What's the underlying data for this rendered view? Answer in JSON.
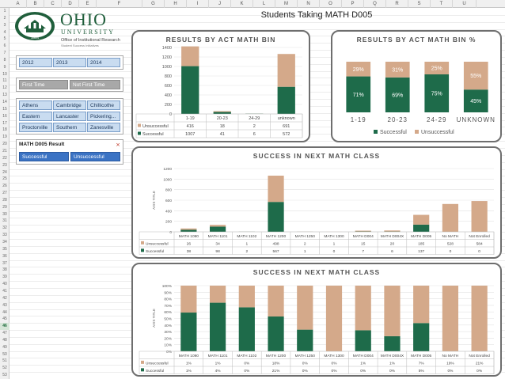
{
  "colors": {
    "successful": "#1e6b4a",
    "unsuccessful": "#d4a98a",
    "slicer_blue": "#c9dcf0",
    "slicer_active": "#3b73c4",
    "panel_border": "#6e6e6e"
  },
  "excel": {
    "columns": [
      "A",
      "B",
      "C",
      "D",
      "E",
      "F",
      "G",
      "H",
      "I",
      "J",
      "K",
      "L",
      "M",
      "N",
      "O",
      "P",
      "Q",
      "R",
      "S",
      "T",
      "U"
    ],
    "rows": [
      "1",
      "2",
      "3",
      "4",
      "5",
      "6",
      "7",
      "8",
      "9",
      "10",
      "11",
      "12",
      "13",
      "14",
      "15",
      "16",
      "17",
      "18",
      "19",
      "20",
      "21",
      "22",
      "23",
      "24",
      "25",
      "26",
      "27",
      "28",
      "29",
      "30",
      "31",
      "32",
      "33",
      "34",
      "35",
      "36",
      "37",
      "38",
      "39",
      "40",
      "41",
      "42",
      "43",
      "44",
      "45",
      "46",
      "47",
      "48",
      "49",
      "50",
      "51",
      "52",
      "53"
    ],
    "selected_row": "46"
  },
  "logo": {
    "name": "OHIO",
    "subname": "UNIVERSITY",
    "office": "Office of Institutional Research",
    "initiative": "Student Success Initiatives",
    "seal_year": "1804"
  },
  "page_title": "Students Taking MATH D005",
  "slicers": {
    "years": [
      "2012",
      "2013",
      "2014"
    ],
    "first_time": [
      "First Time",
      "Not First Time"
    ],
    "campuses": [
      "Athens",
      "Cambridge",
      "Chillicothe",
      "Eastern",
      "Lancaster",
      "Pickering...",
      "Proctorville",
      "Southern",
      "Zanesville"
    ],
    "result_title": "MATH D005 Result",
    "result_filter_icon": "filter-clear-icon",
    "results": [
      "Successful",
      "Unsuccessful"
    ]
  },
  "charts": {
    "act_bin": {
      "title": "RESULTS BY ACT MATH BIN",
      "chart_data": {
        "type": "bar",
        "stacked": true,
        "categories": [
          "1-19",
          "20-23",
          "24-29",
          "unknown"
        ],
        "series": [
          {
            "name": "Unsuccessful",
            "values": [
              416,
              18,
              2,
              691
            ]
          },
          {
            "name": "Successful",
            "values": [
              1007,
              41,
              6,
              572
            ]
          }
        ],
        "ylim": [
          0,
          1400
        ],
        "yticks": [
          0,
          200,
          400,
          600,
          800,
          1000,
          1200,
          1400
        ],
        "grid": true,
        "legend": "data-table"
      }
    },
    "act_bin_pct": {
      "title": "RESULTS BY ACT MATH BIN %",
      "chart_data": {
        "type": "bar",
        "stacked": true,
        "percent": true,
        "categories": [
          "1-19",
          "20-23",
          "24-29",
          "UNKNOWN"
        ],
        "series": [
          {
            "name": "Successful",
            "values": [
              71,
              69,
              75,
              45
            ],
            "labels": [
              "71%",
              "69%",
              "75%",
              "45%"
            ]
          },
          {
            "name": "Unsuccessful",
            "values": [
              29,
              31,
              25,
              55
            ],
            "labels": [
              "29%",
              "31%",
              "25%",
              "55%"
            ]
          }
        ],
        "ylim": [
          0,
          100
        ],
        "legend": "bottom"
      }
    },
    "next_math": {
      "title": "SUCCESS IN NEXT MATH CLASS",
      "chart_data": {
        "type": "bar",
        "stacked": true,
        "categories": [
          "MATH 1090",
          "MATH 1101",
          "MATH 1102",
          "MATH 1200",
          "MATH 1250",
          "MATH 1300",
          "MATH D004",
          "MATH D004X",
          "MATH D005",
          "No MATH",
          "Not Enrolled"
        ],
        "series": [
          {
            "name": "Unsuccessful",
            "values": [
              26,
              34,
              1,
              498,
              2,
              1,
              15,
              20,
              185,
              528,
              584
            ]
          },
          {
            "name": "Successful",
            "values": [
              38,
              98,
              2,
              567,
              1,
              0,
              7,
              6,
              137,
              0,
              0
            ]
          }
        ],
        "ylim": [
          0,
          1200
        ],
        "yticks": [
          0,
          200,
          400,
          600,
          800,
          1000,
          1200
        ],
        "ylabel": "AXIS TITLE",
        "grid": true,
        "legend": "data-table"
      }
    },
    "next_math_pct": {
      "title": "SUCCESS IN NEXT MATH CLASS",
      "chart_data": {
        "type": "bar",
        "stacked": true,
        "percent": true,
        "categories": [
          "MATH 1090",
          "MATH 1101",
          "MATH 1102",
          "MATH 1200",
          "MATH 1250",
          "MATH 1300",
          "MATH D004",
          "MATH D004X",
          "MATH D005",
          "No MATH",
          "Not Enrolled"
        ],
        "series": [
          {
            "name": "Unsuccessful",
            "values": [
              1,
              1,
              0,
              18,
              0,
              0,
              1,
              1,
              7,
              19,
              21
            ],
            "labels": [
              "1%",
              "1%",
              "0%",
              "18%",
              "0%",
              "0%",
              "1%",
              "1%",
              "7%",
              "19%",
              "21%"
            ]
          },
          {
            "name": "Successful",
            "values": [
              1,
              4,
              0,
              21,
              0,
              0,
              0,
              0,
              5,
              0,
              0
            ],
            "labels": [
              "1%",
              "4%",
              "0%",
              "21%",
              "0%",
              "0%",
              "0%",
              "0%",
              "5%",
              "0%",
              "0%"
            ]
          }
        ],
        "bar_success_share": [
          59,
          74,
          67,
          53,
          33,
          0,
          32,
          23,
          43,
          0,
          0
        ],
        "ylim": [
          0,
          100
        ],
        "yticks": [
          "0%",
          "10%",
          "20%",
          "30%",
          "40%",
          "50%",
          "60%",
          "70%",
          "80%",
          "90%",
          "100%"
        ],
        "ylabel": "AXIS TITLE",
        "grid": true,
        "legend": "data-table"
      }
    }
  }
}
